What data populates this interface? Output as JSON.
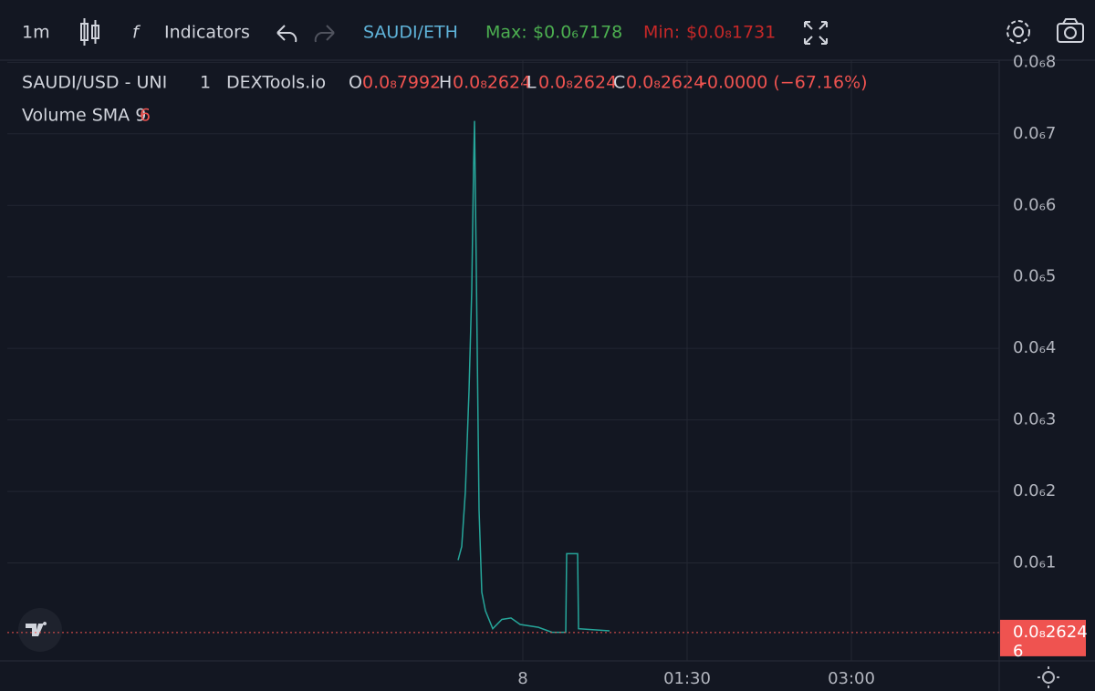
{
  "toolbar": {
    "interval": "1m",
    "indicators": "Indicators",
    "pair": "SAUDI/ETH",
    "max_label": "Max:",
    "max_value": "$0.0₆7178",
    "min_label": "Min:",
    "min_value": "$0.0₈1731"
  },
  "legend": {
    "symbol": "SAUDI/USD - UNI",
    "interval": "1",
    "source": "DEXTools.io",
    "o_label": "O",
    "o_value": "0.0₈7992",
    "h_label": "H",
    "h_value": "0.0₈2624",
    "l_label": "L",
    "l_value": "0.0₈2624",
    "c_label": "C",
    "c_value": "0.0₈2624",
    "change": "-0.0000 (−67.16%)",
    "volume_label": "Volume SMA 9",
    "volume_value": "6"
  },
  "chart_data": {
    "type": "line",
    "x": [
      -35.5,
      -33.5,
      -31.5,
      -29.5,
      -28,
      -27,
      -26.5,
      -25.5,
      -24,
      -22.5,
      -20.5,
      -16.5,
      -11.5,
      -6.5,
      -1.5,
      8.5,
      16,
      23.5,
      24,
      30,
      30.5,
      47.5
    ],
    "series": [
      {
        "color": "#26a69a",
        "values": [
          1.04e-07,
          1.23e-07,
          2e-07,
          3.41e-07,
          4.82e-07,
          6.55e-07,
          7.18e-07,
          5.08e-07,
          1.74e-07,
          5.9e-08,
          3.3e-08,
          8e-09,
          2.1e-08,
          2.3e-08,
          1.4e-08,
          1e-08,
          3e-09,
          3e-09,
          1.13e-07,
          1.13e-07,
          8e-09,
          5e-09
        ]
      }
    ],
    "xlim": [
      -282.5,
      261
    ],
    "xticks": [
      {
        "value": 0,
        "label": "8"
      },
      {
        "value": 90,
        "label": "01:30"
      },
      {
        "value": 180,
        "label": "03:00"
      }
    ],
    "ylim": [
      -3.7e-08,
      8.03e-07
    ],
    "yticks": [
      {
        "value": 1e-07,
        "label": "0.0₆1"
      },
      {
        "value": 2e-07,
        "label": "0.0₆2"
      },
      {
        "value": 3e-07,
        "label": "0.0₆3"
      },
      {
        "value": 4e-07,
        "label": "0.0₆4"
      },
      {
        "value": 5e-07,
        "label": "0.0₆5"
      },
      {
        "value": 6e-07,
        "label": "0.0₆6"
      },
      {
        "value": 7e-07,
        "label": "0.0₆7"
      },
      {
        "value": 8e-07,
        "label": "0.0₆8"
      }
    ],
    "grid": true,
    "price_line": 2.624e-09,
    "price_label": "0.0₈2624",
    "volume_tag": "6"
  }
}
